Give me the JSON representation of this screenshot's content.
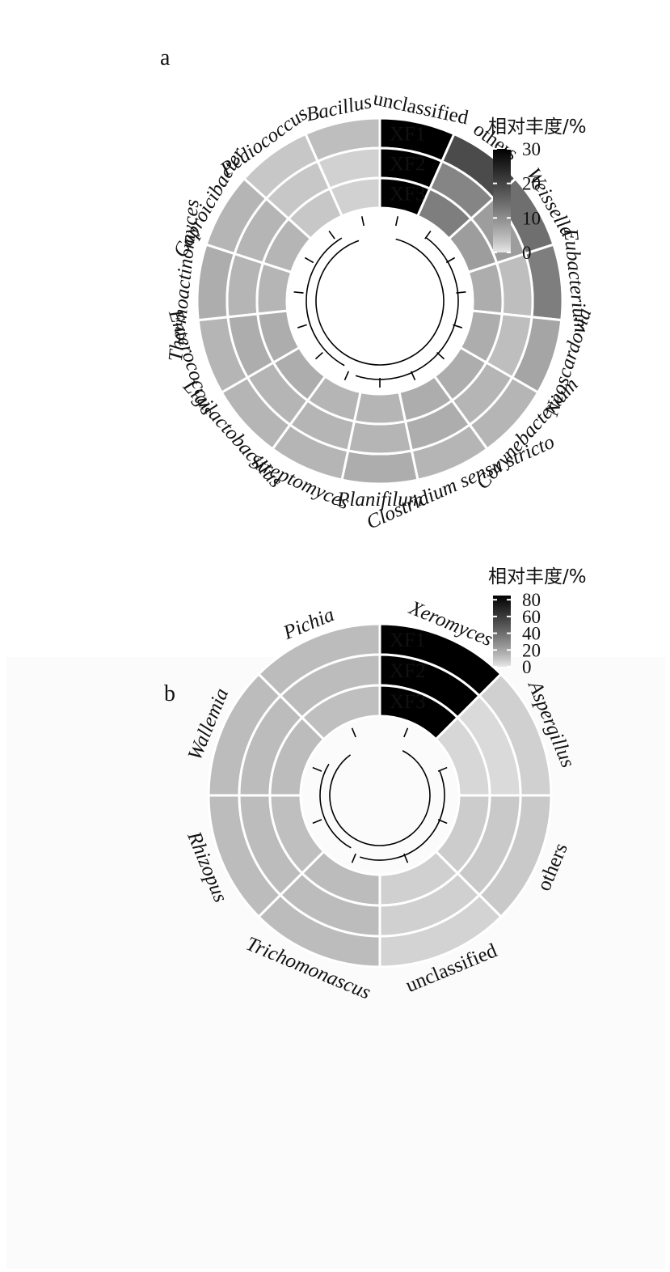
{
  "chart_data": [
    {
      "type": "heatmap",
      "panel_label": "a",
      "samples": [
        "XF1",
        "XF2",
        "XF3"
      ],
      "genera": [
        "unclassified",
        "others",
        "Weissella",
        "Eubacterium",
        "Neoscardovia",
        "Corynebacterium",
        "Clostridium sensu stricto",
        "Planifilum",
        "Streptomyces",
        "Ligilactobacillus",
        "Enterococcus",
        "Thermoactinomyces",
        "Caproicibacter",
        "Pediococcus",
        "Bacillus"
      ],
      "italic": [
        false,
        false,
        true,
        true,
        true,
        true,
        true,
        true,
        true,
        true,
        true,
        true,
        true,
        true,
        true
      ],
      "values": [
        [
          31,
          19,
          14,
          12,
          7,
          5,
          5,
          6,
          5,
          5,
          5,
          6,
          5,
          3,
          4
        ],
        [
          30,
          11,
          8,
          4,
          4,
          5,
          6,
          5,
          5,
          5,
          6,
          5,
          5,
          3,
          2
        ],
        [
          31,
          12,
          8,
          6,
          6,
          6,
          6,
          5,
          5,
          6,
          6,
          5,
          5,
          3,
          2
        ]
      ],
      "legend": {
        "title": "相对丰度/%",
        "ticks": [
          30,
          20,
          10,
          0
        ],
        "range": [
          0,
          30
        ]
      }
    },
    {
      "type": "heatmap",
      "panel_label": "b",
      "samples": [
        "XF1",
        "XF2",
        "XF3"
      ],
      "genera": [
        "Xeromyces",
        "Aspergillus",
        "others",
        "unclassified",
        "Trichomonascus",
        "Rhizopus",
        "Wallemia",
        "Pichia"
      ],
      "italic": [
        true,
        true,
        false,
        false,
        true,
        true,
        true,
        true
      ],
      "values": [
        [
          85,
          6,
          8,
          5,
          12,
          12,
          12,
          12
        ],
        [
          85,
          3,
          8,
          6,
          12,
          12,
          12,
          12
        ],
        [
          85,
          4,
          7,
          6,
          12,
          11,
          12,
          11
        ]
      ],
      "legend": {
        "title": "相对丰度/%",
        "ticks": [
          80,
          60,
          40,
          20,
          0
        ],
        "range": [
          0,
          85
        ]
      }
    }
  ]
}
